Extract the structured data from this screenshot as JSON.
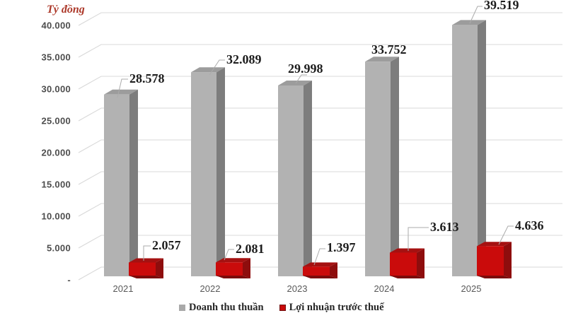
{
  "chart_data": {
    "type": "bar",
    "style": "3d-clustered-column",
    "title": "",
    "ylabel": "Tỷ đồng",
    "categories": [
      "2021",
      "2022",
      "2023",
      "2024",
      "2025"
    ],
    "series": [
      {
        "name": "Doanh thu thuần",
        "color": "#b2b2b2",
        "values": [
          28578,
          32089,
          29998,
          33752,
          39519
        ],
        "data_labels": [
          "28.578",
          "32.089",
          "29.998",
          "33.752",
          "39.519"
        ]
      },
      {
        "name": "Lợi nhuận trước thuế",
        "color": "#ca0b0b",
        "values": [
          2057,
          2081,
          1397,
          3613,
          4636
        ],
        "data_labels": [
          "2.057",
          "2.081",
          "1.397",
          "3.613",
          "4.636"
        ]
      }
    ],
    "y_axis": {
      "min": 0,
      "max": 40000,
      "step": 5000,
      "tick_labels": [
        "-",
        "5.000",
        "10.000",
        "15.000",
        "20.000",
        "25.000",
        "30.000",
        "35.000",
        "40.000"
      ]
    },
    "grid": true,
    "legend_position": "bottom-center"
  },
  "colors": {
    "bar_gray_front": "#b2b2b2",
    "bar_gray_top": "#9c9c9c",
    "bar_gray_side": "#7d7d7d",
    "bar_red_front": "#ca0b0b",
    "bar_red_top": "#a51111",
    "bar_red_side": "#8e0d0d",
    "bar_red_bottom": "#7c0b0b",
    "gridline": "#d9d9d9",
    "leader_line": "#ababab",
    "tick_text": "#4d4d4d",
    "year_text": "#595959",
    "data_label_text": "#1c1c1c",
    "axis_title_text": "#ac3829",
    "legend_swatch_red_border": "#701010",
    "background": "#ffffff"
  }
}
